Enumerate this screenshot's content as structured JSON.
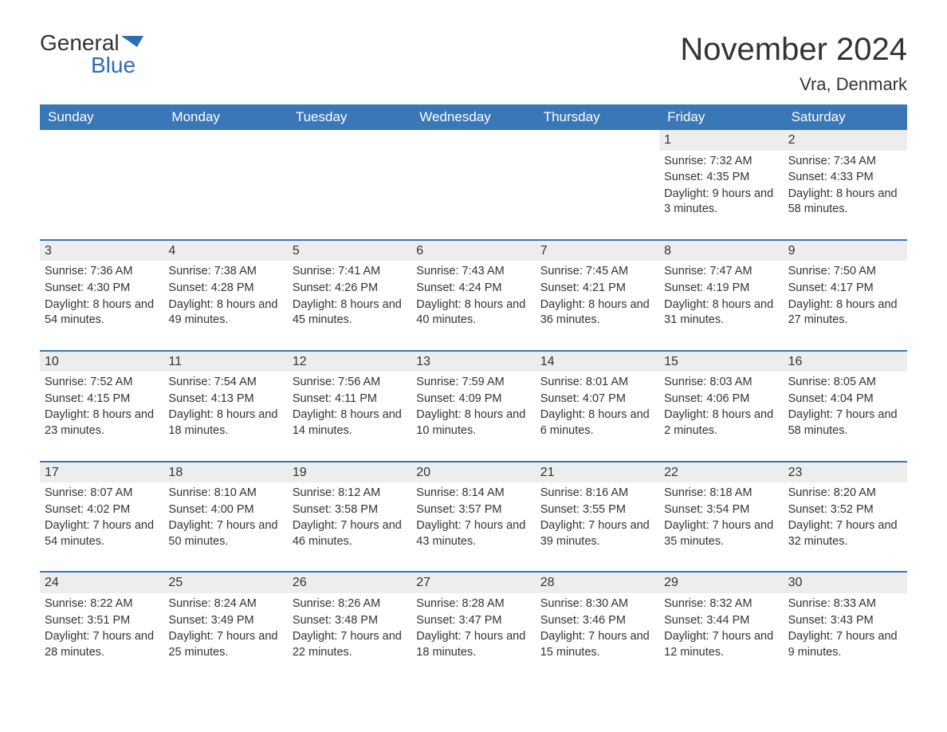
{
  "logo": {
    "line1": "General",
    "line2": "Blue",
    "icon_color": "#2d6fb5"
  },
  "title": "November 2024",
  "location": "Vra, Denmark",
  "colors": {
    "header_bg": "#3a77b7",
    "header_text": "#ffffff",
    "day_bar_bg": "#ededed",
    "text": "#333333",
    "rule": "#3a77b7",
    "background": "#ffffff"
  },
  "typography": {
    "title_fontsize": 40,
    "location_fontsize": 22,
    "weekday_fontsize": 17,
    "body_fontsize": 14.5,
    "day_number_fontsize": 16
  },
  "weekdays": [
    "Sunday",
    "Monday",
    "Tuesday",
    "Wednesday",
    "Thursday",
    "Friday",
    "Saturday"
  ],
  "layout": {
    "columns": 7,
    "rows": 5,
    "first_day_column": 5
  },
  "labels": {
    "sunrise": "Sunrise",
    "sunset": "Sunset",
    "daylight": "Daylight"
  },
  "days": [
    {
      "n": 1,
      "sunrise": "7:32 AM",
      "sunset": "4:35 PM",
      "daylight": "9 hours and 3 minutes."
    },
    {
      "n": 2,
      "sunrise": "7:34 AM",
      "sunset": "4:33 PM",
      "daylight": "8 hours and 58 minutes."
    },
    {
      "n": 3,
      "sunrise": "7:36 AM",
      "sunset": "4:30 PM",
      "daylight": "8 hours and 54 minutes."
    },
    {
      "n": 4,
      "sunrise": "7:38 AM",
      "sunset": "4:28 PM",
      "daylight": "8 hours and 49 minutes."
    },
    {
      "n": 5,
      "sunrise": "7:41 AM",
      "sunset": "4:26 PM",
      "daylight": "8 hours and 45 minutes."
    },
    {
      "n": 6,
      "sunrise": "7:43 AM",
      "sunset": "4:24 PM",
      "daylight": "8 hours and 40 minutes."
    },
    {
      "n": 7,
      "sunrise": "7:45 AM",
      "sunset": "4:21 PM",
      "daylight": "8 hours and 36 minutes."
    },
    {
      "n": 8,
      "sunrise": "7:47 AM",
      "sunset": "4:19 PM",
      "daylight": "8 hours and 31 minutes."
    },
    {
      "n": 9,
      "sunrise": "7:50 AM",
      "sunset": "4:17 PM",
      "daylight": "8 hours and 27 minutes."
    },
    {
      "n": 10,
      "sunrise": "7:52 AM",
      "sunset": "4:15 PM",
      "daylight": "8 hours and 23 minutes."
    },
    {
      "n": 11,
      "sunrise": "7:54 AM",
      "sunset": "4:13 PM",
      "daylight": "8 hours and 18 minutes."
    },
    {
      "n": 12,
      "sunrise": "7:56 AM",
      "sunset": "4:11 PM",
      "daylight": "8 hours and 14 minutes."
    },
    {
      "n": 13,
      "sunrise": "7:59 AM",
      "sunset": "4:09 PM",
      "daylight": "8 hours and 10 minutes."
    },
    {
      "n": 14,
      "sunrise": "8:01 AM",
      "sunset": "4:07 PM",
      "daylight": "8 hours and 6 minutes."
    },
    {
      "n": 15,
      "sunrise": "8:03 AM",
      "sunset": "4:06 PM",
      "daylight": "8 hours and 2 minutes."
    },
    {
      "n": 16,
      "sunrise": "8:05 AM",
      "sunset": "4:04 PM",
      "daylight": "7 hours and 58 minutes."
    },
    {
      "n": 17,
      "sunrise": "8:07 AM",
      "sunset": "4:02 PM",
      "daylight": "7 hours and 54 minutes."
    },
    {
      "n": 18,
      "sunrise": "8:10 AM",
      "sunset": "4:00 PM",
      "daylight": "7 hours and 50 minutes."
    },
    {
      "n": 19,
      "sunrise": "8:12 AM",
      "sunset": "3:58 PM",
      "daylight": "7 hours and 46 minutes."
    },
    {
      "n": 20,
      "sunrise": "8:14 AM",
      "sunset": "3:57 PM",
      "daylight": "7 hours and 43 minutes."
    },
    {
      "n": 21,
      "sunrise": "8:16 AM",
      "sunset": "3:55 PM",
      "daylight": "7 hours and 39 minutes."
    },
    {
      "n": 22,
      "sunrise": "8:18 AM",
      "sunset": "3:54 PM",
      "daylight": "7 hours and 35 minutes."
    },
    {
      "n": 23,
      "sunrise": "8:20 AM",
      "sunset": "3:52 PM",
      "daylight": "7 hours and 32 minutes."
    },
    {
      "n": 24,
      "sunrise": "8:22 AM",
      "sunset": "3:51 PM",
      "daylight": "7 hours and 28 minutes."
    },
    {
      "n": 25,
      "sunrise": "8:24 AM",
      "sunset": "3:49 PM",
      "daylight": "7 hours and 25 minutes."
    },
    {
      "n": 26,
      "sunrise": "8:26 AM",
      "sunset": "3:48 PM",
      "daylight": "7 hours and 22 minutes."
    },
    {
      "n": 27,
      "sunrise": "8:28 AM",
      "sunset": "3:47 PM",
      "daylight": "7 hours and 18 minutes."
    },
    {
      "n": 28,
      "sunrise": "8:30 AM",
      "sunset": "3:46 PM",
      "daylight": "7 hours and 15 minutes."
    },
    {
      "n": 29,
      "sunrise": "8:32 AM",
      "sunset": "3:44 PM",
      "daylight": "7 hours and 12 minutes."
    },
    {
      "n": 30,
      "sunrise": "8:33 AM",
      "sunset": "3:43 PM",
      "daylight": "7 hours and 9 minutes."
    }
  ]
}
